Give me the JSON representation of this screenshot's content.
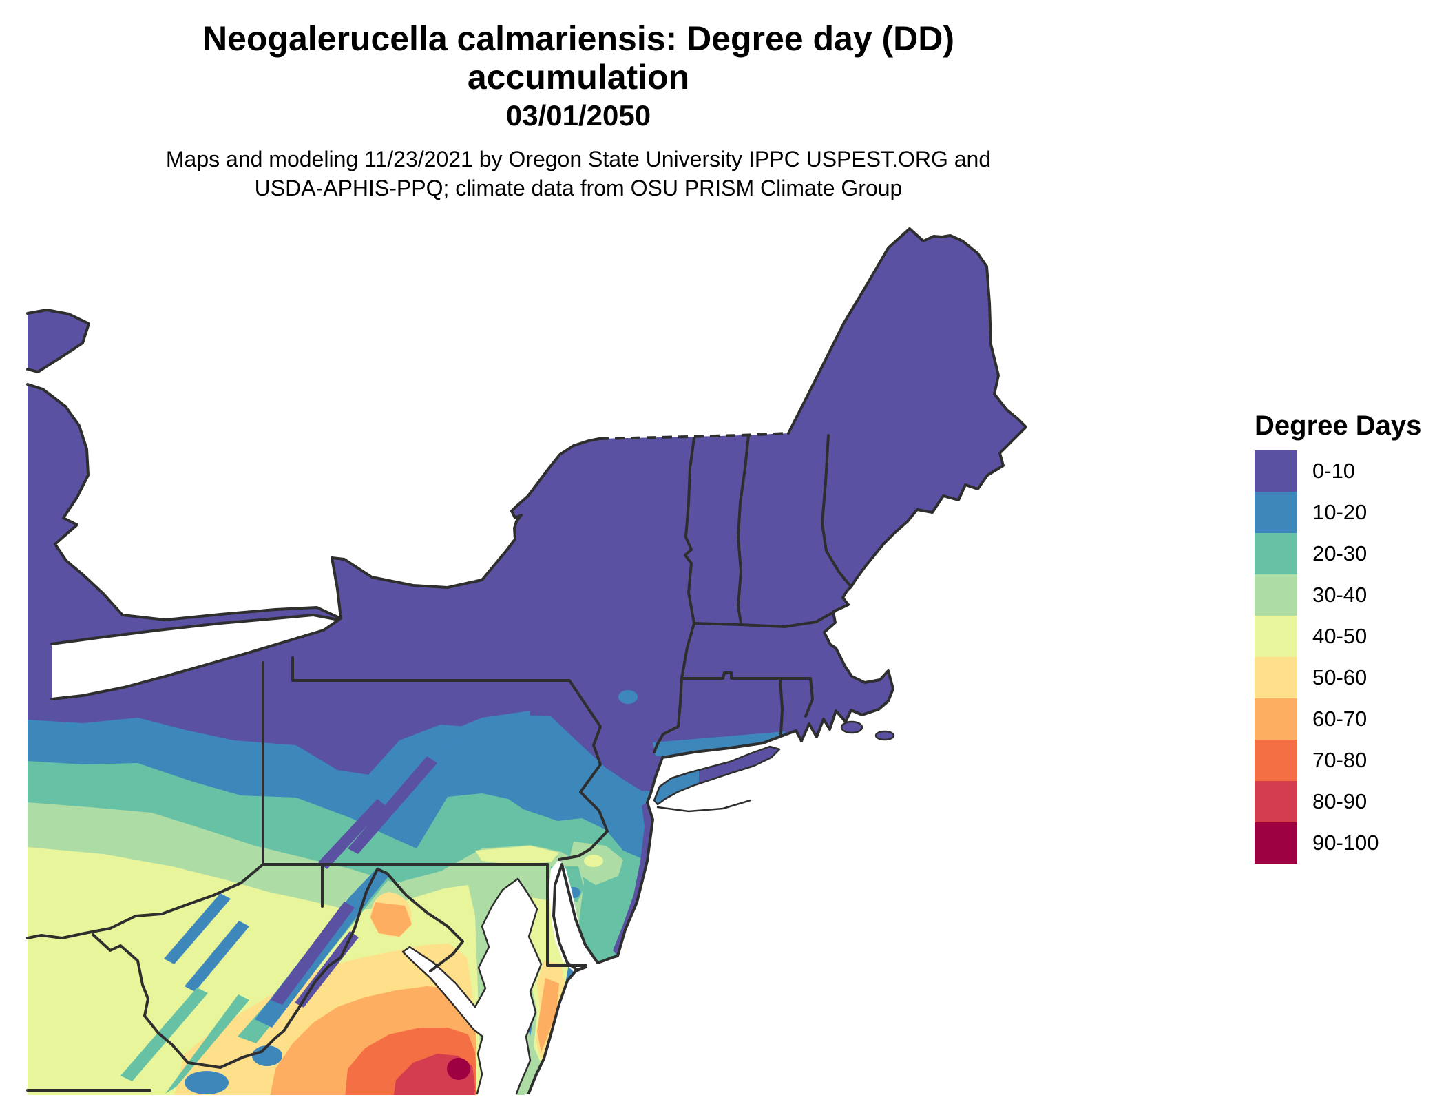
{
  "header": {
    "title_line1": "Neogalerucella calmariensis: Degree day (DD) accumulation",
    "title_line2": "03/01/2050",
    "subtitle_line1": "Maps and modeling 11/23/2021 by Oregon State University IPPC USPEST.ORG and",
    "subtitle_line2": "USDA-APHIS-PPQ; climate data from OSU PRISM Climate Group"
  },
  "legend": {
    "title": "Degree Days",
    "entries": [
      {
        "label": "0-10",
        "color": "#5b51a3"
      },
      {
        "label": "10-20",
        "color": "#3d87bb"
      },
      {
        "label": "20-30",
        "color": "#67c1a5"
      },
      {
        "label": "30-40",
        "color": "#addca4"
      },
      {
        "label": "40-50",
        "color": "#e8f59b"
      },
      {
        "label": "50-60",
        "color": "#fee08b"
      },
      {
        "label": "60-70",
        "color": "#fdae61"
      },
      {
        "label": "70-80",
        "color": "#f46f44"
      },
      {
        "label": "80-90",
        "color": "#d43d4f"
      },
      {
        "label": "90-100",
        "color": "#9e0142"
      }
    ]
  },
  "map": {
    "water_color": "#ffffff",
    "boundary_color": "#2e2e2e",
    "value_unit": "Degree Days (DD)"
  }
}
